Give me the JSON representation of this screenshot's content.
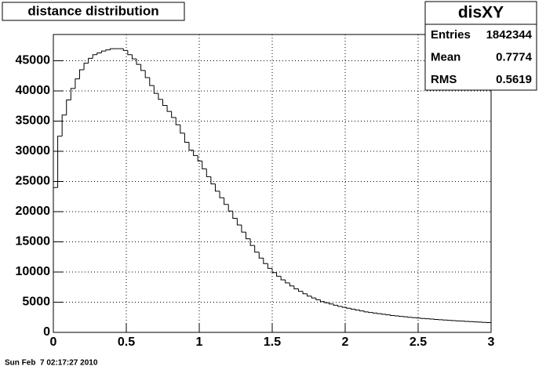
{
  "chart_data": {
    "type": "histogram",
    "title": "distance distribution",
    "bins": [
      0,
      0.03,
      0.06,
      0.09,
      0.12,
      0.15,
      0.18,
      0.21,
      0.24,
      0.27,
      0.3,
      0.33,
      0.36,
      0.39,
      0.42,
      0.45,
      0.48,
      0.51,
      0.54,
      0.57,
      0.6,
      0.63,
      0.66,
      0.69,
      0.72,
      0.75,
      0.78,
      0.81,
      0.84,
      0.87,
      0.9,
      0.93,
      0.96,
      0.99,
      1.02,
      1.05,
      1.08,
      1.11,
      1.14,
      1.17,
      1.2,
      1.23,
      1.26,
      1.29,
      1.32,
      1.35,
      1.38,
      1.41,
      1.44,
      1.47,
      1.5,
      1.53,
      1.56,
      1.59,
      1.62,
      1.65,
      1.68,
      1.71,
      1.74,
      1.77,
      1.8,
      1.83,
      1.86,
      1.89,
      1.92,
      1.95,
      1.98,
      2.01,
      2.04,
      2.07,
      2.1,
      2.13,
      2.16,
      2.19,
      2.22,
      2.25,
      2.28,
      2.31,
      2.34,
      2.37,
      2.4,
      2.43,
      2.46,
      2.49,
      2.52,
      2.55,
      2.58,
      2.61,
      2.64,
      2.67,
      2.7,
      2.73,
      2.76,
      2.79,
      2.82,
      2.85,
      2.88,
      2.91,
      2.94,
      2.97,
      3
    ],
    "values": [
      24000,
      32500,
      36000,
      38500,
      40400,
      42000,
      43500,
      44600,
      45400,
      46000,
      46300,
      46600,
      46800,
      47000,
      47000,
      47000,
      46700,
      46000,
      45300,
      44400,
      43400,
      42200,
      40900,
      39600,
      38600,
      37600,
      36600,
      35600,
      34400,
      33000,
      31500,
      30200,
      29300,
      28400,
      27100,
      25800,
      24600,
      23400,
      22300,
      21200,
      20100,
      18900,
      17800,
      16600,
      15500,
      14400,
      13300,
      12300,
      11400,
      10600,
      9900,
      9300,
      8700,
      8200,
      7700,
      7200,
      6800,
      6400,
      6000,
      5700,
      5400,
      5100,
      4900,
      4700,
      4500,
      4300,
      4150,
      4000,
      3850,
      3700,
      3550,
      3400,
      3300,
      3200,
      3100,
      3000,
      2900,
      2800,
      2720,
      2650,
      2580,
      2500,
      2430,
      2370,
      2310,
      2250,
      2200,
      2150,
      2100,
      2050,
      2000,
      1950,
      1900,
      1860,
      1820,
      1780,
      1740,
      1700,
      1660,
      1620
    ],
    "color": "#000000",
    "xlim": [
      0,
      3
    ],
    "xticks": [
      0,
      0.5,
      1,
      1.5,
      2,
      2.5,
      3
    ],
    "ylim": [
      0,
      49350
    ],
    "yticks": [
      0,
      5000,
      10000,
      15000,
      20000,
      25000,
      30000,
      35000,
      40000,
      45000
    ],
    "grid": true,
    "stats": {
      "title": "disXY",
      "rows": [
        [
          "Entries",
          1842344
        ],
        [
          "Mean",
          0.7774
        ],
        [
          "RMS",
          0.5619
        ]
      ]
    },
    "timestamp": "Sun Feb  7 02:17:27 2010"
  }
}
